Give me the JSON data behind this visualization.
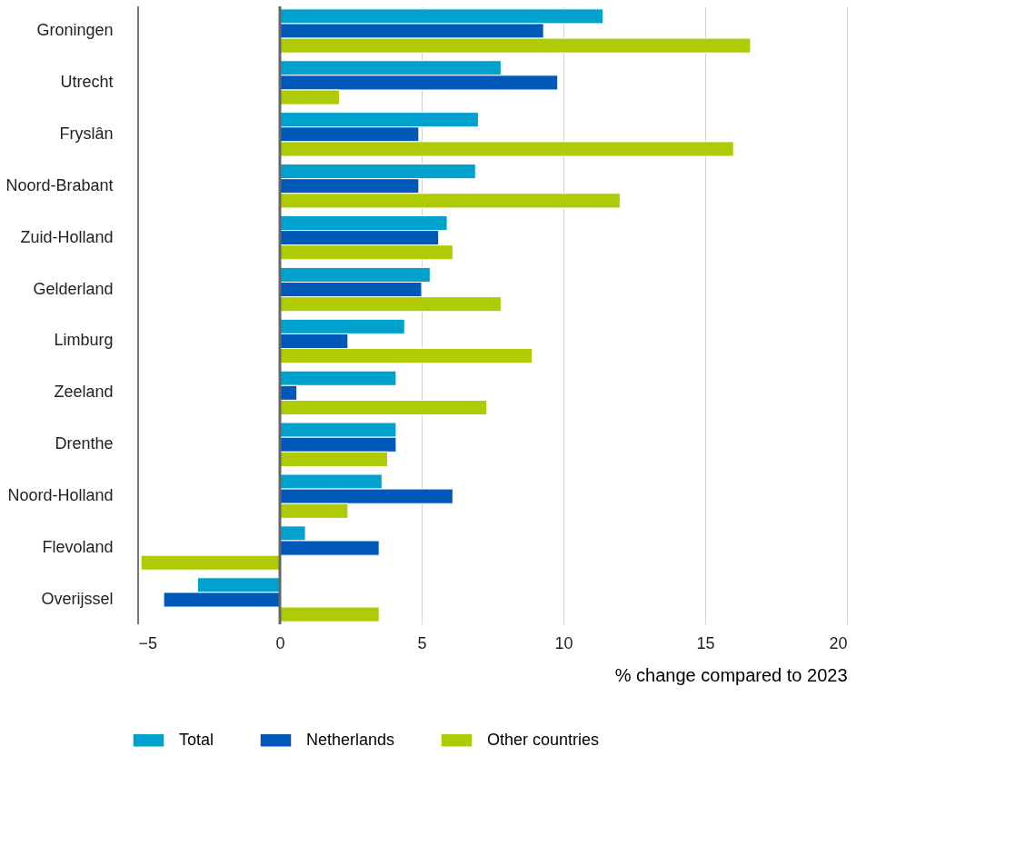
{
  "chart_data": {
    "type": "bar",
    "orientation": "horizontal",
    "xlabel": "% change compared to 2023",
    "categories": [
      "Groningen",
      "Utrecht",
      "Fryslân",
      "Noord-Brabant",
      "Zuid-Holland",
      "Gelderland",
      "Limburg",
      "Zeeland",
      "Drenthe",
      "Noord-Holland",
      "Flevoland",
      "Overijssel"
    ],
    "series": [
      {
        "name": "Total",
        "color": "#00a1cd",
        "values": [
          11.4,
          7.8,
          7.0,
          6.9,
          5.9,
          5.3,
          4.4,
          4.1,
          4.1,
          3.6,
          0.9,
          -2.9
        ]
      },
      {
        "name": "Netherlands",
        "color": "#0058b8",
        "values": [
          9.3,
          9.8,
          4.9,
          4.9,
          5.6,
          5.0,
          2.4,
          0.6,
          4.1,
          6.1,
          3.5,
          -4.1
        ]
      },
      {
        "name": "Other countries",
        "color": "#afcb05",
        "values": [
          16.6,
          2.1,
          16.0,
          12.0,
          6.1,
          7.8,
          8.9,
          7.3,
          3.8,
          2.4,
          -4.9,
          3.5
        ]
      }
    ],
    "xlim": [
      -5,
      20
    ],
    "xticks": [
      -5,
      0,
      5,
      10,
      15,
      20
    ],
    "grid": "x",
    "legend": "bottom",
    "ref_lines": [
      {
        "axis": "x",
        "value": 0,
        "color": "#666666"
      }
    ]
  }
}
